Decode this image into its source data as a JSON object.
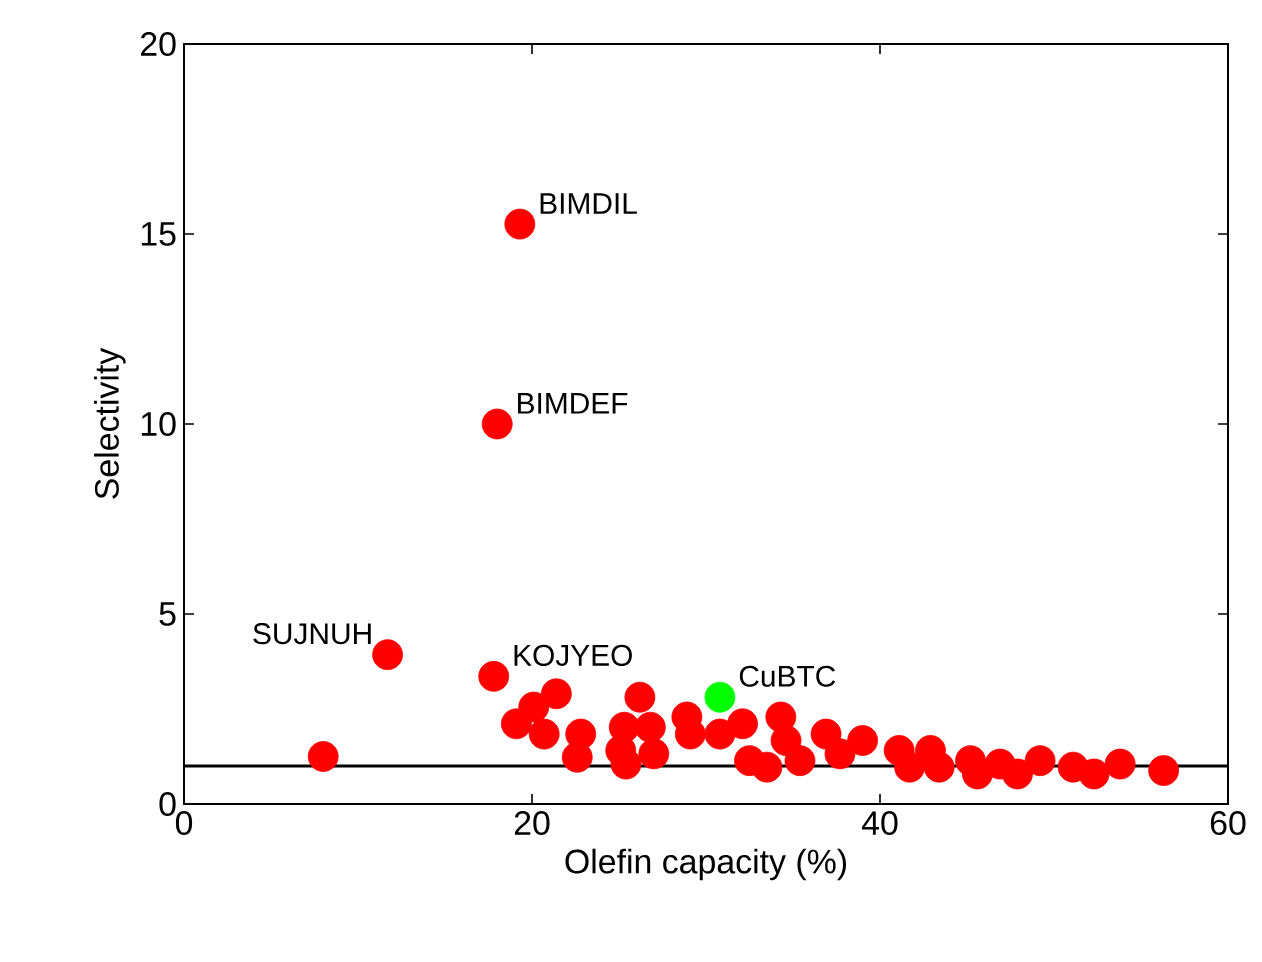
{
  "chart_data": {
    "type": "scatter",
    "xlabel": "Olefin capacity (%)",
    "ylabel": "Selectivity",
    "xlim": [
      0,
      60
    ],
    "ylim": [
      0,
      20
    ],
    "xticks": [
      0,
      20,
      40,
      60
    ],
    "yticks": [
      0,
      5,
      10,
      15,
      20
    ],
    "marker": "circle",
    "grid": false,
    "series": [
      {
        "color": "#ff0000",
        "x": [
          19.3,
          18.0,
          11.7,
          8.0,
          17.8,
          19.1,
          20.1,
          21.4,
          20.7,
          22.8,
          22.6,
          25.3,
          25.1,
          25.4,
          26.2,
          26.8,
          27.0,
          28.9,
          29.1,
          30.8,
          32.1,
          32.5,
          33.5,
          34.3,
          34.6,
          35.4,
          36.9,
          37.7,
          39.0,
          41.1,
          41.7,
          42.9,
          43.4,
          45.2,
          45.6,
          46.9,
          47.9,
          49.2,
          51.1,
          52.3,
          53.8,
          56.3
        ],
        "values": [
          15.26,
          10.0,
          3.93,
          1.25,
          3.36,
          2.11,
          2.55,
          2.9,
          1.84,
          1.84,
          1.23,
          2.02,
          1.41,
          1.05,
          2.81,
          2.02,
          1.32,
          2.29,
          1.84,
          1.84,
          2.11,
          1.14,
          0.97,
          2.29,
          1.67,
          1.14,
          1.84,
          1.32,
          1.67,
          1.41,
          0.97,
          1.41,
          0.97,
          1.14,
          0.79,
          1.05,
          0.79,
          1.14,
          0.97,
          0.79,
          1.05,
          0.88
        ]
      },
      {
        "color": "#00ff00",
        "x": [
          30.8
        ],
        "values": [
          2.81
        ]
      }
    ],
    "ref_lines": [
      {
        "axis": "y",
        "value": 1,
        "color": "#000000",
        "line_style": "solid"
      }
    ],
    "annotations": [
      {
        "text": "BIMDIL",
        "x": 19.3,
        "y": 15.26
      },
      {
        "text": "BIMDEF",
        "x": 18.0,
        "y": 10.0
      },
      {
        "text": "SUJNUH",
        "x": 11.7,
        "y": 3.93
      },
      {
        "text": "KOJYEO",
        "x": 17.8,
        "y": 3.36
      },
      {
        "text": "CuBTC",
        "x": 30.8,
        "y": 2.81
      }
    ]
  }
}
